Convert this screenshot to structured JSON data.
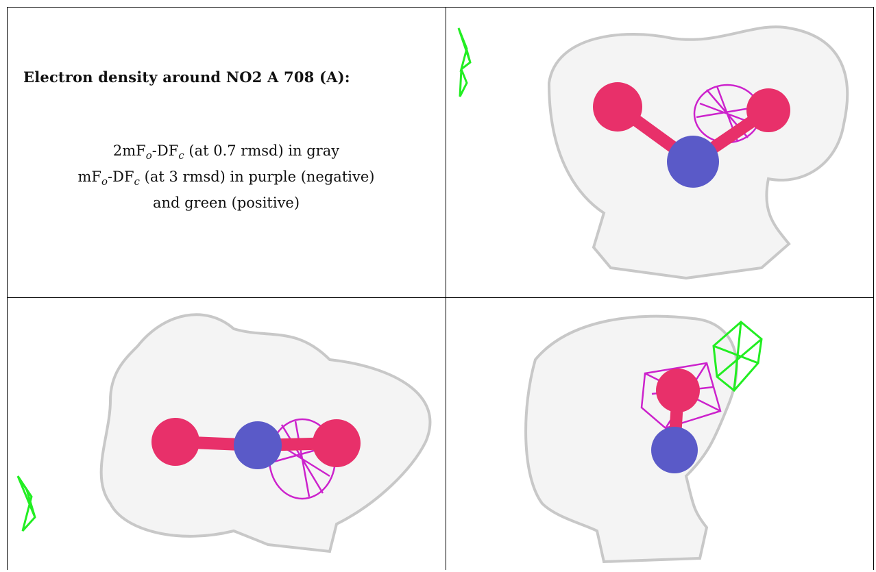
{
  "caption": {
    "title": "Electron density around NO2 A 708 (A):",
    "line1_a": "2mF",
    "line1_sub1": "o",
    "line1_b": "-DF",
    "line1_sub2": "c",
    "line1_c": " (at 0.7 rmsd) in gray",
    "line2_a": "mF",
    "line2_sub1": "o",
    "line2_b": "-DF",
    "line2_sub2": "c",
    "line2_c": " (at 3 rmsd) in purple (negative)",
    "line3": "and green (positive)"
  },
  "colors": {
    "mesh_2fofc": "#c8c8c8",
    "mesh_negative": "#cc22cc",
    "mesh_positive": "#22ee22",
    "oxygen": "#e8306a",
    "nitrogen": "#5a5ac8"
  },
  "views": [
    {
      "name": "view-top-right",
      "atoms": [
        "O",
        "N",
        "O"
      ]
    },
    {
      "name": "view-bottom-left",
      "atoms": [
        "O",
        "N",
        "O"
      ]
    },
    {
      "name": "view-bottom-right",
      "atoms": [
        "O",
        "N"
      ]
    }
  ]
}
